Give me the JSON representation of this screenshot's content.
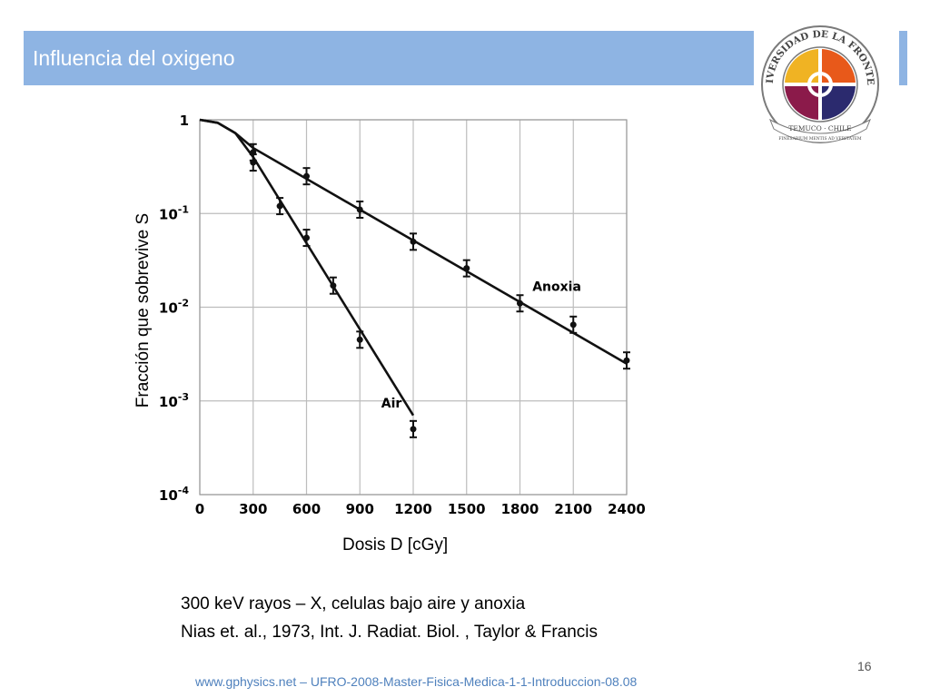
{
  "slide": {
    "title": "Influencia del oxigeno",
    "caption_line1": "300 keV  rayos – X, celulas bajo aire y anoxia",
    "caption_line2": "Nias et. al., 1973, Int. J. Radiat. Biol. , Taylor & Francis",
    "page_number": "16",
    "footer": "www.gphysics.net – UFRO-2008-Master-Fisica-Medica-1-1-Introduccion-08.08",
    "accent_color": "#8eb4e3"
  },
  "logo": {
    "text_top": "UNIVERSIDAD DE LA FRONTERA",
    "text_ribbon": "TEMUCO · CHILE",
    "text_motto": "FINESARIUM MENTIS AD VERITATEM",
    "colors": [
      "#f0b323",
      "#e8591a",
      "#8b1a4a",
      "#2b2a6e"
    ]
  },
  "chart_data": {
    "type": "scatter",
    "xlabel": "Dosis D [cGy]",
    "ylabel": "Fracción que sobrevive S",
    "xlim": [
      0,
      2400
    ],
    "ylim": [
      0.0001,
      1
    ],
    "yscale": "log",
    "grid": true,
    "x_ticks": [
      "0",
      "300",
      "600",
      "900",
      "1200",
      "1500",
      "1800",
      "2100",
      "2400"
    ],
    "y_ticks": [
      {
        "base": "1",
        "exp": ""
      },
      {
        "base": "10",
        "exp": "-1"
      },
      {
        "base": "10",
        "exp": "-2"
      },
      {
        "base": "10",
        "exp": "-3"
      },
      {
        "base": "10",
        "exp": "-4"
      }
    ],
    "series": [
      {
        "name": "Anoxia",
        "points": [
          {
            "x": 300,
            "y": 0.45
          },
          {
            "x": 600,
            "y": 0.25
          },
          {
            "x": 900,
            "y": 0.11
          },
          {
            "x": 1200,
            "y": 0.05
          },
          {
            "x": 1500,
            "y": 0.026
          },
          {
            "x": 1800,
            "y": 0.011
          },
          {
            "x": 2100,
            "y": 0.0065
          },
          {
            "x": 2400,
            "y": 0.0027
          }
        ],
        "fit": [
          {
            "x": 0,
            "y": 1
          },
          {
            "x": 100,
            "y": 0.93
          },
          {
            "x": 200,
            "y": 0.72
          },
          {
            "x": 300,
            "y": 0.5
          },
          {
            "x": 2400,
            "y": 0.0025
          }
        ]
      },
      {
        "name": "Air",
        "points": [
          {
            "x": 300,
            "y": 0.35
          },
          {
            "x": 450,
            "y": 0.12
          },
          {
            "x": 600,
            "y": 0.055
          },
          {
            "x": 750,
            "y": 0.017
          },
          {
            "x": 900,
            "y": 0.0045
          },
          {
            "x": 1200,
            "y": 0.0005
          }
        ],
        "fit": [
          {
            "x": 0,
            "y": 1
          },
          {
            "x": 100,
            "y": 0.93
          },
          {
            "x": 200,
            "y": 0.72
          },
          {
            "x": 300,
            "y": 0.4
          },
          {
            "x": 1200,
            "y": 0.0007
          }
        ]
      }
    ]
  }
}
